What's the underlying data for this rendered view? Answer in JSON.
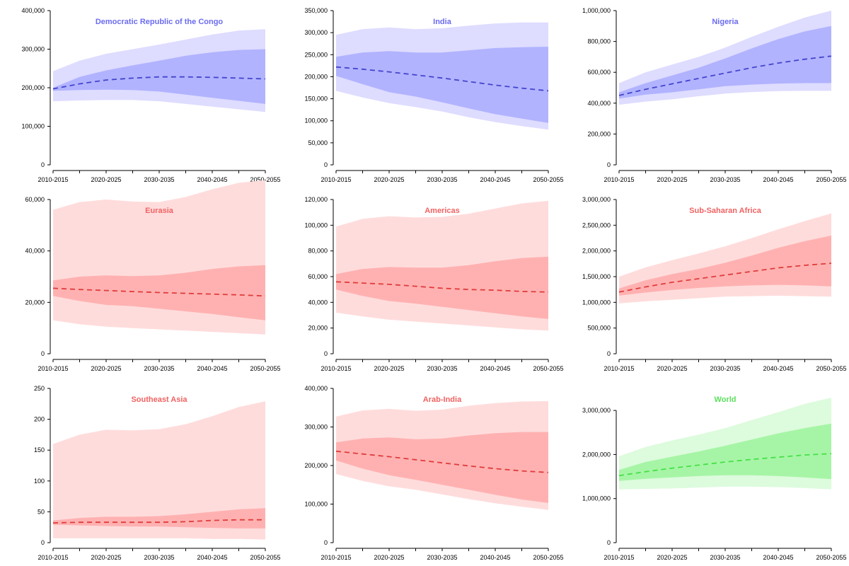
{
  "chart_data": [
    {
      "type": "area",
      "title": "Democratic Republic of the Congo",
      "color": "blue",
      "ylim": [
        0,
        400000
      ],
      "yticks": [
        0,
        100000,
        200000,
        300000,
        400000
      ],
      "ytick_labels": [
        "0",
        "100,000",
        "200,000",
        "300,000",
        "400,000"
      ],
      "x": [
        2010,
        2015,
        2020,
        2025,
        2030,
        2035,
        2040,
        2045,
        2050
      ],
      "xtick_labels": [
        "2010-2015",
        "2020-2025",
        "2030-2035",
        "2040-2045",
        "2050-2055"
      ],
      "series": [
        {
          "role": "median",
          "values": [
            197000,
            210000,
            220000,
            225000,
            228000,
            228000,
            227000,
            225000,
            223000
          ]
        },
        {
          "role": "inner_upper",
          "values": [
            200000,
            228000,
            245000,
            258000,
            270000,
            283000,
            292000,
            298000,
            300000
          ]
        },
        {
          "role": "inner_lower",
          "values": [
            192000,
            194000,
            195000,
            194000,
            190000,
            182000,
            174000,
            166000,
            158000
          ]
        },
        {
          "role": "outer_upper",
          "values": [
            243000,
            270000,
            288000,
            300000,
            312000,
            325000,
            338000,
            348000,
            352000
          ]
        },
        {
          "role": "outer_lower",
          "values": [
            165000,
            167000,
            168000,
            168000,
            165000,
            158000,
            151000,
            144000,
            137000
          ]
        }
      ]
    },
    {
      "type": "area",
      "title": "India",
      "color": "blue",
      "ylim": [
        0,
        350000
      ],
      "yticks": [
        0,
        50000,
        100000,
        150000,
        200000,
        250000,
        300000,
        350000
      ],
      "ytick_labels": [
        "0",
        "50,000",
        "100,000",
        "150,000",
        "200,000",
        "250,000",
        "300,000",
        "350,000"
      ],
      "x": [
        2010,
        2015,
        2020,
        2025,
        2030,
        2035,
        2040,
        2045,
        2050
      ],
      "xtick_labels": [
        "2010-2015",
        "2020-2025",
        "2030-2035",
        "2040-2045",
        "2050-2055"
      ],
      "series": [
        {
          "role": "median",
          "values": [
            222000,
            217000,
            211000,
            204000,
            197000,
            189000,
            181000,
            174000,
            168000
          ]
        },
        {
          "role": "inner_upper",
          "values": [
            245000,
            255000,
            258000,
            255000,
            255000,
            260000,
            265000,
            267000,
            268000
          ]
        },
        {
          "role": "inner_lower",
          "values": [
            202000,
            183000,
            165000,
            155000,
            142000,
            128000,
            115000,
            105000,
            95000
          ]
        },
        {
          "role": "outer_upper",
          "values": [
            295000,
            308000,
            312000,
            308000,
            310000,
            316000,
            321000,
            323000,
            323000
          ]
        },
        {
          "role": "outer_lower",
          "values": [
            168000,
            153000,
            140000,
            131000,
            121000,
            108000,
            97000,
            88000,
            80000
          ]
        }
      ]
    },
    {
      "type": "area",
      "title": "Nigeria",
      "color": "blue",
      "ylim": [
        0,
        1000000
      ],
      "yticks": [
        0,
        200000,
        400000,
        600000,
        800000,
        1000000
      ],
      "ytick_labels": [
        "0",
        "200,000",
        "400,000",
        "600,000",
        "800,000",
        "1,000,000"
      ],
      "x": [
        2010,
        2015,
        2020,
        2025,
        2030,
        2035,
        2040,
        2045,
        2050
      ],
      "xtick_labels": [
        "2010-2015",
        "2020-2025",
        "2030-2035",
        "2040-2045",
        "2050-2055"
      ],
      "series": [
        {
          "role": "median",
          "values": [
            450000,
            490000,
            525000,
            560000,
            595000,
            630000,
            660000,
            685000,
            705000
          ]
        },
        {
          "role": "inner_upper",
          "values": [
            470000,
            530000,
            580000,
            630000,
            690000,
            755000,
            815000,
            865000,
            900000
          ]
        },
        {
          "role": "inner_lower",
          "values": [
            430000,
            455000,
            470000,
            490000,
            510000,
            520000,
            527000,
            530000,
            530000
          ]
        },
        {
          "role": "outer_upper",
          "values": [
            530000,
            600000,
            650000,
            700000,
            760000,
            830000,
            895000,
            955000,
            1000000
          ]
        },
        {
          "role": "outer_lower",
          "values": [
            390000,
            410000,
            425000,
            445000,
            462000,
            472000,
            478000,
            480000,
            480000
          ]
        }
      ]
    },
    {
      "type": "area",
      "title": "Eurasia",
      "color": "red",
      "ylim": [
        0,
        60000
      ],
      "yticks": [
        0,
        20000,
        40000,
        60000
      ],
      "ytick_labels": [
        "0",
        "20,000",
        "40,000",
        "60,000"
      ],
      "x": [
        2010,
        2015,
        2020,
        2025,
        2030,
        2035,
        2040,
        2045,
        2050
      ],
      "xtick_labels": [
        "2010-2015",
        "2020-2025",
        "2030-2035",
        "2040-2045",
        "2050-2055"
      ],
      "series": [
        {
          "role": "median",
          "values": [
            25500,
            25000,
            24600,
            24200,
            23800,
            23500,
            23200,
            22900,
            22500
          ]
        },
        {
          "role": "inner_upper",
          "values": [
            28500,
            30000,
            30500,
            30200,
            30500,
            31500,
            33000,
            34000,
            34500
          ]
        },
        {
          "role": "inner_lower",
          "values": [
            22500,
            20500,
            19000,
            18500,
            17500,
            16500,
            15500,
            14200,
            13000
          ]
        },
        {
          "role": "outer_upper",
          "values": [
            56000,
            59000,
            60000,
            59200,
            59000,
            61000,
            64000,
            66500,
            67500
          ]
        },
        {
          "role": "outer_lower",
          "values": [
            13000,
            11500,
            10500,
            10000,
            9500,
            9000,
            8500,
            8000,
            7500
          ]
        }
      ]
    },
    {
      "type": "area",
      "title": "Americas",
      "color": "red",
      "ylim": [
        0,
        120000
      ],
      "yticks": [
        0,
        20000,
        40000,
        60000,
        80000,
        100000,
        120000
      ],
      "ytick_labels": [
        "0",
        "20,000",
        "40,000",
        "60,000",
        "80,000",
        "100,000",
        "120,000"
      ],
      "x": [
        2010,
        2015,
        2020,
        2025,
        2030,
        2035,
        2040,
        2045,
        2050
      ],
      "xtick_labels": [
        "2010-2015",
        "2020-2025",
        "2030-2035",
        "2040-2045",
        "2050-2055"
      ],
      "series": [
        {
          "role": "median",
          "values": [
            56000,
            55000,
            54000,
            52500,
            51000,
            50000,
            49500,
            48500,
            48000
          ]
        },
        {
          "role": "inner_upper",
          "values": [
            62000,
            66000,
            67500,
            67000,
            67000,
            69000,
            72000,
            74500,
            75500
          ]
        },
        {
          "role": "inner_lower",
          "values": [
            50000,
            45000,
            41000,
            39000,
            36500,
            34000,
            31500,
            29000,
            27000
          ]
        },
        {
          "role": "outer_upper",
          "values": [
            99000,
            105000,
            107000,
            106000,
            106500,
            109000,
            113000,
            117000,
            119000
          ]
        },
        {
          "role": "outer_lower",
          "values": [
            32000,
            29000,
            26500,
            25000,
            23500,
            22000,
            20500,
            19000,
            18000
          ]
        }
      ]
    },
    {
      "type": "area",
      "title": "Sub-Saharan Africa",
      "color": "red",
      "ylim": [
        0,
        3000000
      ],
      "yticks": [
        0,
        500000,
        1000000,
        1500000,
        2000000,
        2500000,
        3000000
      ],
      "ytick_labels": [
        "0",
        "500,000",
        "1,000,000",
        "1,500,000",
        "2,000,000",
        "2,500,000",
        "3,000,000"
      ],
      "x": [
        2010,
        2015,
        2020,
        2025,
        2030,
        2035,
        2040,
        2045,
        2050
      ],
      "xtick_labels": [
        "2010-2015",
        "2020-2025",
        "2030-2035",
        "2040-2045",
        "2050-2055"
      ],
      "series": [
        {
          "role": "median",
          "values": [
            1200000,
            1300000,
            1390000,
            1460000,
            1530000,
            1600000,
            1670000,
            1720000,
            1760000
          ]
        },
        {
          "role": "inner_upper",
          "values": [
            1270000,
            1430000,
            1550000,
            1650000,
            1770000,
            1910000,
            2060000,
            2190000,
            2300000
          ]
        },
        {
          "role": "inner_lower",
          "values": [
            1130000,
            1190000,
            1240000,
            1280000,
            1310000,
            1330000,
            1340000,
            1330000,
            1310000
          ]
        },
        {
          "role": "outer_upper",
          "values": [
            1500000,
            1680000,
            1820000,
            1950000,
            2090000,
            2250000,
            2420000,
            2580000,
            2730000
          ]
        },
        {
          "role": "outer_lower",
          "values": [
            980000,
            1020000,
            1050000,
            1080000,
            1110000,
            1120000,
            1130000,
            1120000,
            1110000
          ]
        }
      ]
    },
    {
      "type": "area",
      "title": "Southeast Asia",
      "color": "red",
      "ylim": [
        0,
        250
      ],
      "yticks": [
        0,
        50,
        100,
        150,
        200,
        250
      ],
      "ytick_labels": [
        "0",
        "50",
        "100",
        "150",
        "200",
        "250"
      ],
      "x": [
        2010,
        2015,
        2020,
        2025,
        2030,
        2035,
        2040,
        2045,
        2050
      ],
      "xtick_labels": [
        "2010-2015",
        "2020-2025",
        "2030-2035",
        "2040-2045",
        "2050-2055"
      ],
      "series": [
        {
          "role": "median",
          "values": [
            32,
            33,
            33,
            33,
            33,
            34,
            36,
            37,
            37
          ]
        },
        {
          "role": "inner_upper",
          "values": [
            36,
            40,
            42,
            42,
            43,
            46,
            50,
            54,
            56
          ]
        },
        {
          "role": "inner_lower",
          "values": [
            29,
            28,
            27,
            26,
            26,
            25,
            24,
            23,
            23
          ]
        },
        {
          "role": "outer_upper",
          "values": [
            160,
            175,
            183,
            182,
            184,
            192,
            205,
            220,
            229
          ]
        },
        {
          "role": "outer_lower",
          "values": [
            7,
            7,
            7,
            7,
            7,
            7,
            6,
            6,
            5
          ]
        }
      ]
    },
    {
      "type": "area",
      "title": "Arab-India",
      "color": "red",
      "ylim": [
        0,
        400000
      ],
      "yticks": [
        0,
        100000,
        200000,
        300000,
        400000
      ],
      "ytick_labels": [
        "0",
        "100,000",
        "200,000",
        "300,000",
        "400,000"
      ],
      "x": [
        2010,
        2015,
        2020,
        2025,
        2030,
        2035,
        2040,
        2045,
        2050
      ],
      "xtick_labels": [
        "2010-2015",
        "2020-2025",
        "2030-2035",
        "2040-2045",
        "2050-2055"
      ],
      "series": [
        {
          "role": "median",
          "values": [
            237000,
            230000,
            223000,
            215000,
            207000,
            199000,
            192000,
            186000,
            182000
          ]
        },
        {
          "role": "inner_upper",
          "values": [
            260000,
            270000,
            273000,
            268000,
            270000,
            278000,
            284000,
            287000,
            287000
          ]
        },
        {
          "role": "inner_lower",
          "values": [
            213000,
            192000,
            175000,
            163000,
            150000,
            137000,
            124000,
            112000,
            103000
          ]
        },
        {
          "role": "outer_upper",
          "values": [
            327000,
            343000,
            347000,
            342000,
            345000,
            355000,
            362000,
            366000,
            367000
          ]
        },
        {
          "role": "outer_lower",
          "values": [
            178000,
            160000,
            146000,
            137000,
            125000,
            113000,
            102000,
            93000,
            85000
          ]
        }
      ]
    },
    {
      "type": "area",
      "title": "World",
      "color": "green",
      "ylim": [
        0,
        3500000
      ],
      "yticks": [
        0,
        1000000,
        2000000,
        3000000
      ],
      "ytick_labels": [
        "0",
        "1,000,000",
        "2,000,000",
        "3,000,000"
      ],
      "x": [
        2010,
        2015,
        2020,
        2025,
        2030,
        2035,
        2040,
        2045,
        2050
      ],
      "xtick_labels": [
        "2010-2015",
        "2020-2025",
        "2030-2035",
        "2040-2045",
        "2050-2055"
      ],
      "series": [
        {
          "role": "median",
          "values": [
            1520000,
            1610000,
            1690000,
            1760000,
            1830000,
            1890000,
            1940000,
            1990000,
            2020000
          ]
        },
        {
          "role": "inner_upper",
          "values": [
            1650000,
            1830000,
            1950000,
            2070000,
            2200000,
            2340000,
            2480000,
            2600000,
            2700000
          ]
        },
        {
          "role": "inner_lower",
          "values": [
            1400000,
            1450000,
            1480000,
            1510000,
            1530000,
            1530000,
            1510000,
            1480000,
            1440000
          ]
        },
        {
          "role": "outer_upper",
          "values": [
            1960000,
            2170000,
            2320000,
            2450000,
            2600000,
            2780000,
            2960000,
            3150000,
            3290000
          ]
        },
        {
          "role": "outer_lower",
          "values": [
            1210000,
            1220000,
            1230000,
            1250000,
            1270000,
            1270000,
            1260000,
            1240000,
            1210000
          ]
        }
      ]
    }
  ],
  "palette": {
    "blue": {
      "outer": "#dedcff",
      "inner": "#b1b3ff",
      "line": "#4444cc",
      "title": "#6b6bf0"
    },
    "red": {
      "outer": "#ffdcdc",
      "inner": "#ffb1b1",
      "line": "#e03c3c",
      "title": "#f06262"
    },
    "green": {
      "outer": "#ddfbdd",
      "inner": "#a6f5a6",
      "line": "#46e046",
      "title": "#5ce05c"
    }
  }
}
